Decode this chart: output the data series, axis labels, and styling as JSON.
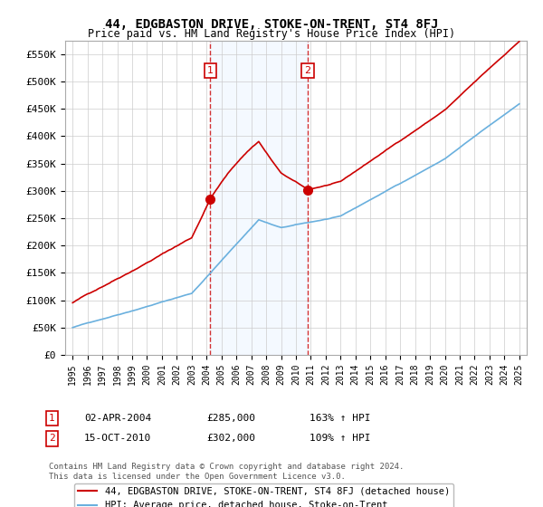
{
  "title": "44, EDGBASTON DRIVE, STOKE-ON-TRENT, ST4 8FJ",
  "subtitle": "Price paid vs. HM Land Registry's House Price Index (HPI)",
  "legend_line1": "44, EDGBASTON DRIVE, STOKE-ON-TRENT, ST4 8FJ (detached house)",
  "legend_line2": "HPI: Average price, detached house, Stoke-on-Trent",
  "footer1": "Contains HM Land Registry data © Crown copyright and database right 2024.",
  "footer2": "This data is licensed under the Open Government Licence v3.0.",
  "annotation1_label": "1",
  "annotation1_date": "02-APR-2004",
  "annotation1_price": "£285,000",
  "annotation1_hpi": "163% ↑ HPI",
  "annotation2_label": "2",
  "annotation2_date": "15-OCT-2010",
  "annotation2_price": "£302,000",
  "annotation2_hpi": "109% ↑ HPI",
  "sale1_year": 2004.25,
  "sale1_price": 285000,
  "sale2_year": 2010.79,
  "sale2_price": 302000,
  "ylim": [
    0,
    575000
  ],
  "yticks": [
    0,
    50000,
    100000,
    150000,
    200000,
    250000,
    300000,
    350000,
    400000,
    450000,
    500000,
    550000
  ],
  "ytick_labels": [
    "£0",
    "£50K",
    "£100K",
    "£150K",
    "£200K",
    "£250K",
    "£300K",
    "£350K",
    "£400K",
    "£450K",
    "£500K",
    "£550K"
  ],
  "hpi_color": "#6ab0de",
  "sale_color": "#cc0000",
  "grid_color": "#cccccc",
  "bg_color": "#ffffff",
  "shaded_color": "#ddeeff"
}
